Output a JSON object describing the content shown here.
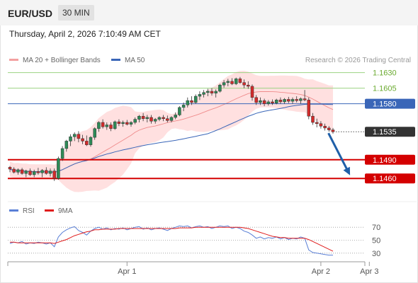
{
  "header": {
    "symbol": "EUR/USD",
    "timeframe": "30 MIN"
  },
  "datetime": "Thursday, April 2, 2026 7:10:49 AM CET",
  "credit": "Research © 2026 Trading Central",
  "colors": {
    "up": "#2e8b57",
    "down": "#d42a2a",
    "bollinger": "#ffd6d6",
    "ma20": "#ef8b8b",
    "ma50": "#3a66b8",
    "resistance": "#9bd282",
    "pivot": "#3a66b8",
    "support": "#d40000",
    "price": "#333333",
    "arrow": "#1f5fa8",
    "rsi": "#5a7fd6",
    "rsi_ma": "#e01c1c"
  },
  "chart_data": [
    {
      "type": "candlestick",
      "legend": [
        {
          "name": "MA 20 + Bollinger Bands",
          "color": "#ef8b8b"
        },
        {
          "name": "MA 50",
          "color": "#3a66b8"
        }
      ],
      "ylim": [
        1.1425,
        1.165
      ],
      "x_ticks": [
        {
          "label": "Apr 1",
          "index": 29
        },
        {
          "label": "Apr 2",
          "index": 77
        },
        {
          "label": "Apr 3",
          "index": 89
        }
      ],
      "levels": [
        {
          "label": "1.1630",
          "value": 1.163,
          "kind": "resistance"
        },
        {
          "label": "1.1605",
          "value": 1.1605,
          "kind": "resistance"
        },
        {
          "label": "1.1580",
          "value": 1.158,
          "kind": "pivot"
        },
        {
          "label": "1.1535",
          "value": 1.1535,
          "kind": "price"
        },
        {
          "label": "1.1490",
          "value": 1.149,
          "kind": "support"
        },
        {
          "label": "1.1460",
          "value": 1.146,
          "kind": "support"
        }
      ],
      "forecast_arrow": {
        "from_index": 78,
        "from": 1.1535,
        "to_index": 83,
        "to": 1.1465
      },
      "candles": [
        [
          1.1478,
          1.148,
          1.147,
          1.1475
        ],
        [
          1.1475,
          1.1478,
          1.1468,
          1.147
        ],
        [
          1.147,
          1.1476,
          1.1466,
          1.1474
        ],
        [
          1.1474,
          1.1477,
          1.1466,
          1.1468
        ],
        [
          1.1468,
          1.1474,
          1.1462,
          1.1472
        ],
        [
          1.1472,
          1.1476,
          1.1464,
          1.1466
        ],
        [
          1.1466,
          1.1474,
          1.1462,
          1.1471
        ],
        [
          1.1471,
          1.1477,
          1.1466,
          1.1469
        ],
        [
          1.1469,
          1.1475,
          1.1462,
          1.1473
        ],
        [
          1.1473,
          1.1478,
          1.1466,
          1.1468
        ],
        [
          1.1468,
          1.1476,
          1.1463,
          1.1472
        ],
        [
          1.1472,
          1.1476,
          1.1456,
          1.146
        ],
        [
          1.146,
          1.1495,
          1.1458,
          1.1492
        ],
        [
          1.1492,
          1.1512,
          1.1488,
          1.1508
        ],
        [
          1.1508,
          1.1522,
          1.1503,
          1.152
        ],
        [
          1.152,
          1.1531,
          1.1512,
          1.1527
        ],
        [
          1.1527,
          1.1534,
          1.152,
          1.1531
        ],
        [
          1.1531,
          1.1536,
          1.1518,
          1.1524
        ],
        [
          1.1524,
          1.153,
          1.1515,
          1.152
        ],
        [
          1.152,
          1.1529,
          1.1512,
          1.1514
        ],
        [
          1.1514,
          1.1528,
          1.1511,
          1.1526
        ],
        [
          1.1526,
          1.1542,
          1.1522,
          1.154
        ],
        [
          1.154,
          1.1552,
          1.1535,
          1.155
        ],
        [
          1.155,
          1.1555,
          1.154,
          1.1543
        ],
        [
          1.1543,
          1.155,
          1.1538,
          1.1546
        ],
        [
          1.1546,
          1.155,
          1.1536,
          1.154
        ],
        [
          1.154,
          1.1553,
          1.1538,
          1.1551
        ],
        [
          1.1551,
          1.1555,
          1.1544,
          1.1548
        ],
        [
          1.1548,
          1.1553,
          1.1543,
          1.155
        ],
        [
          1.155,
          1.1554,
          1.1545,
          1.1547
        ],
        [
          1.1547,
          1.1552,
          1.1543,
          1.155
        ],
        [
          1.155,
          1.1558,
          1.1547,
          1.1555
        ],
        [
          1.1555,
          1.1562,
          1.155,
          1.156
        ],
        [
          1.156,
          1.1565,
          1.1552,
          1.1556
        ],
        [
          1.1556,
          1.1562,
          1.155,
          1.1558
        ],
        [
          1.1558,
          1.1562,
          1.1548,
          1.1552
        ],
        [
          1.1552,
          1.1557,
          1.1548,
          1.1555
        ],
        [
          1.1555,
          1.156,
          1.1552,
          1.1558
        ],
        [
          1.1558,
          1.1562,
          1.1552,
          1.1556
        ],
        [
          1.1556,
          1.1561,
          1.155,
          1.1553
        ],
        [
          1.1553,
          1.156,
          1.155,
          1.1558
        ],
        [
          1.1558,
          1.1566,
          1.1555,
          1.1562
        ],
        [
          1.1562,
          1.1576,
          1.156,
          1.1574
        ],
        [
          1.1574,
          1.1582,
          1.1568,
          1.1578
        ],
        [
          1.1578,
          1.159,
          1.1574,
          1.1585
        ],
        [
          1.1585,
          1.1592,
          1.1578,
          1.1582
        ],
        [
          1.1582,
          1.1595,
          1.158,
          1.1592
        ],
        [
          1.1592,
          1.16,
          1.1586,
          1.1595
        ],
        [
          1.1595,
          1.1602,
          1.159,
          1.1598
        ],
        [
          1.1598,
          1.1604,
          1.1592,
          1.16
        ],
        [
          1.16,
          1.1605,
          1.1593,
          1.1597
        ],
        [
          1.1597,
          1.1603,
          1.159,
          1.16
        ],
        [
          1.16,
          1.1612,
          1.1598,
          1.161
        ],
        [
          1.161,
          1.1618,
          1.1606,
          1.1614
        ],
        [
          1.1614,
          1.162,
          1.1608,
          1.1616
        ],
        [
          1.1616,
          1.1621,
          1.161,
          1.1612
        ],
        [
          1.1612,
          1.1622,
          1.161,
          1.162
        ],
        [
          1.162,
          1.1623,
          1.1612,
          1.1614
        ],
        [
          1.1614,
          1.1619,
          1.1605,
          1.161
        ],
        [
          1.161,
          1.1616,
          1.1604,
          1.1608
        ],
        [
          1.1608,
          1.1611,
          1.1585,
          1.159
        ],
        [
          1.159,
          1.1594,
          1.1578,
          1.1582
        ],
        [
          1.1582,
          1.159,
          1.1578,
          1.1585
        ],
        [
          1.1585,
          1.1588,
          1.1576,
          1.158
        ],
        [
          1.158,
          1.1586,
          1.1577,
          1.1583
        ],
        [
          1.1583,
          1.1587,
          1.1578,
          1.1581
        ],
        [
          1.1581,
          1.1588,
          1.1579,
          1.1586
        ],
        [
          1.1586,
          1.159,
          1.158,
          1.1583
        ],
        [
          1.1583,
          1.1589,
          1.158,
          1.1587
        ],
        [
          1.1587,
          1.1591,
          1.1581,
          1.1584
        ],
        [
          1.1584,
          1.159,
          1.158,
          1.1587
        ],
        [
          1.1587,
          1.1592,
          1.1582,
          1.1585
        ],
        [
          1.1585,
          1.159,
          1.158,
          1.1588
        ],
        [
          1.1588,
          1.1602,
          1.1584,
          1.1586
        ],
        [
          1.1586,
          1.159,
          1.1555,
          1.156
        ],
        [
          1.156,
          1.1565,
          1.1546,
          1.155
        ],
        [
          1.155,
          1.1556,
          1.1542,
          1.1548
        ],
        [
          1.1548,
          1.1552,
          1.154,
          1.1544
        ],
        [
          1.1544,
          1.1548,
          1.1537,
          1.1541
        ],
        [
          1.1541,
          1.1544,
          1.1535,
          1.1538
        ],
        [
          1.1538,
          1.1541,
          1.1532,
          1.1535
        ]
      ]
    },
    {
      "type": "line",
      "legend": [
        {
          "name": "RSI",
          "color": "#5a7fd6"
        },
        {
          "name": "9MA",
          "color": "#e01c1c"
        }
      ],
      "ylim": [
        20,
        80
      ],
      "y_ticks": [
        {
          "label": "70",
          "value": 70
        },
        {
          "label": "50",
          "value": 50
        },
        {
          "label": "30",
          "value": 30
        }
      ],
      "series": [
        {
          "name": "RSI",
          "values": [
            45,
            47,
            46,
            48,
            44,
            46,
            45,
            47,
            46,
            44,
            46,
            40,
            55,
            62,
            66,
            69,
            71,
            65,
            62,
            58,
            64,
            68,
            70,
            67,
            69,
            66,
            68,
            67,
            69,
            66,
            68,
            70,
            71,
            67,
            69,
            66,
            68,
            69,
            67,
            65,
            68,
            70,
            72,
            71,
            72,
            69,
            71,
            72,
            70,
            71,
            68,
            70,
            72,
            71,
            72,
            68,
            70,
            68,
            64,
            62,
            58,
            53,
            55,
            52,
            54,
            53,
            55,
            52,
            54,
            51,
            53,
            52,
            55,
            53,
            35,
            31,
            30,
            29,
            28,
            27,
            27
          ]
        },
        {
          "name": "9MA",
          "values": [
            47,
            47,
            46,
            46,
            46,
            46,
            46,
            46,
            46,
            46,
            46,
            45,
            47,
            49,
            51,
            54,
            57,
            59,
            61,
            63,
            64,
            66,
            66,
            67,
            67,
            67,
            67,
            68,
            68,
            68,
            68,
            68,
            68,
            68,
            68,
            68,
            68,
            68,
            68,
            68,
            68,
            68,
            69,
            69,
            69,
            69,
            70,
            70,
            70,
            70,
            70,
            70,
            70,
            70,
            70,
            70,
            70,
            70,
            69,
            68,
            66,
            64,
            62,
            60,
            58,
            56,
            55,
            54,
            54,
            53,
            53,
            53,
            53,
            53,
            51,
            48,
            45,
            42,
            39,
            36,
            33
          ]
        }
      ]
    }
  ]
}
